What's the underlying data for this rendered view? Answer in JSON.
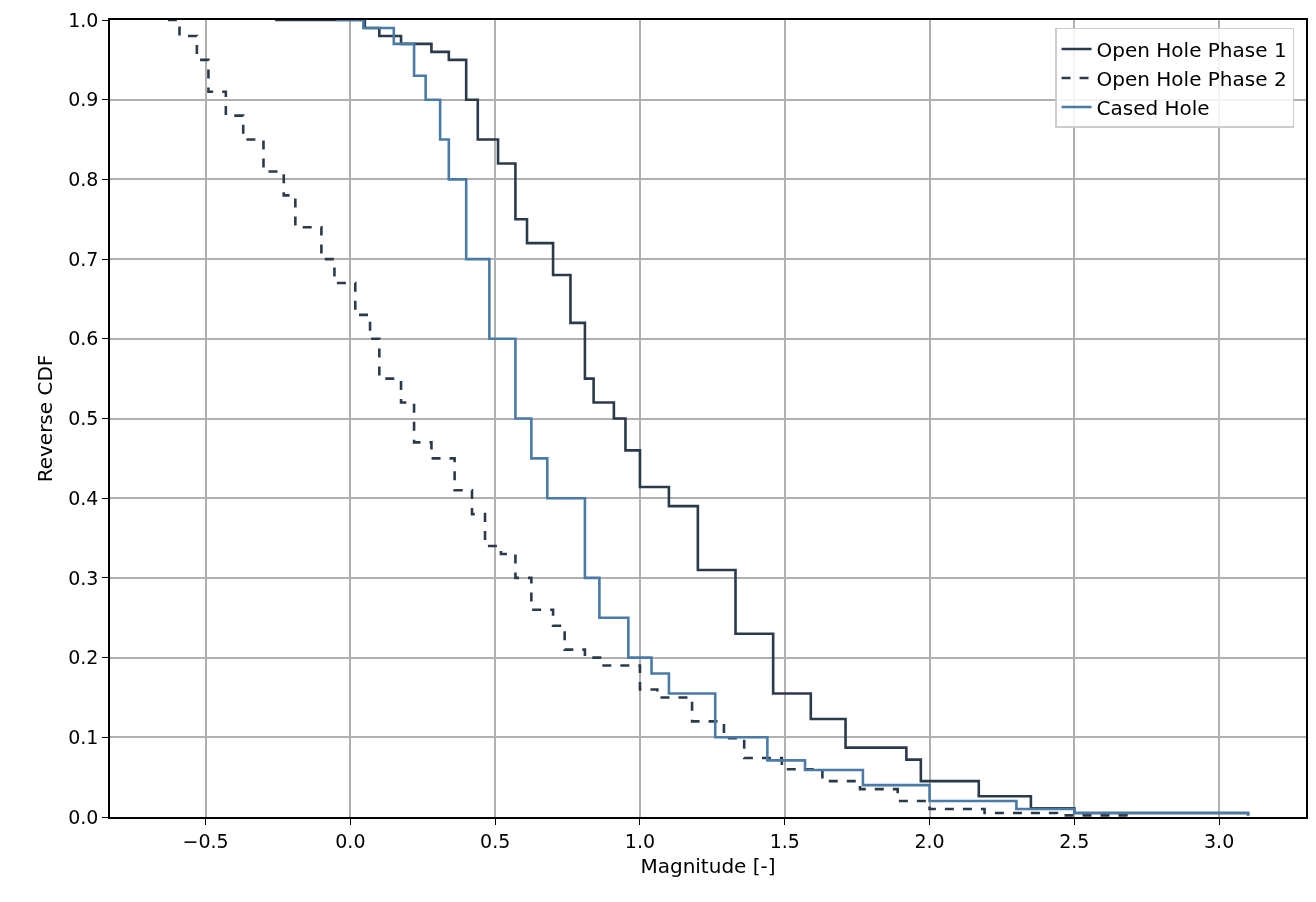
{
  "chart_data": {
    "type": "step",
    "xlabel": "Magnitude [-]",
    "ylabel": "Reverse CDF",
    "xlim": [
      -0.83,
      3.3
    ],
    "ylim": [
      0,
      1
    ],
    "xticks": [
      {
        "value": -0.5,
        "label": "−0.5"
      },
      {
        "value": 0,
        "label": "0.0"
      },
      {
        "value": 0.5,
        "label": "0.5"
      },
      {
        "value": 1,
        "label": "1.0"
      },
      {
        "value": 1.5,
        "label": "1.5"
      },
      {
        "value": 2,
        "label": "2.0"
      },
      {
        "value": 2.5,
        "label": "2.5"
      },
      {
        "value": 3,
        "label": "3.0"
      }
    ],
    "yticks": [
      {
        "value": 0,
        "label": "0.0"
      },
      0.1,
      0.2,
      0.3,
      0.4,
      0.5,
      0.6,
      0.7,
      0.8,
      0.9,
      {
        "value": 1,
        "label": "1.0"
      }
    ],
    "grid": true,
    "legend": "top right",
    "marker": "none",
    "series": [
      {
        "name": "Open Hole Phase 1",
        "color": "#2b3a4a",
        "line_style": "solid",
        "x": [
          -0.26,
          0.05,
          0.1,
          0.175,
          0.28,
          0.34,
          0.4,
          0.44,
          0.51,
          0.57,
          0.61,
          0.7,
          0.76,
          0.81,
          0.84,
          0.91,
          0.95,
          1.0,
          1.1,
          1.2,
          1.33,
          1.46,
          1.59,
          1.71,
          1.92,
          1.97,
          2.17,
          2.35,
          2.5,
          3.1
        ],
        "values": [
          1.0,
          0.99,
          0.98,
          0.97,
          0.96,
          0.95,
          0.9,
          0.85,
          0.82,
          0.75,
          0.72,
          0.68,
          0.62,
          0.55,
          0.52,
          0.5,
          0.46,
          0.414,
          0.39,
          0.31,
          0.23,
          0.155,
          0.123,
          0.087,
          0.072,
          0.045,
          0.026,
          0.011,
          0.005,
          0.002
        ]
      },
      {
        "name": "Open Hole Phase 2",
        "color": "#2b3a4a",
        "line_style": "dashed",
        "x": [
          -0.63,
          -0.59,
          -0.53,
          -0.49,
          -0.43,
          -0.37,
          -0.3,
          -0.23,
          -0.19,
          -0.1,
          -0.055,
          0.017,
          0.068,
          0.1,
          0.175,
          0.22,
          0.28,
          0.36,
          0.42,
          0.465,
          0.52,
          0.57,
          0.625,
          0.7,
          0.74,
          0.81,
          0.87,
          1.0,
          1.06,
          1.18,
          1.29,
          1.36,
          1.49,
          1.63,
          1.76,
          1.89,
          2.0,
          2.19,
          2.44,
          2.68
        ],
        "values": [
          1.0,
          0.98,
          0.95,
          0.91,
          0.88,
          0.85,
          0.81,
          0.78,
          0.74,
          0.7,
          0.67,
          0.63,
          0.6,
          0.55,
          0.52,
          0.47,
          0.45,
          0.41,
          0.38,
          0.34,
          0.33,
          0.3,
          0.26,
          0.24,
          0.21,
          0.2,
          0.19,
          0.16,
          0.15,
          0.12,
          0.099,
          0.074,
          0.06,
          0.045,
          0.035,
          0.02,
          0.01,
          0.005,
          0.002,
          0.0
        ]
      },
      {
        "name": "Cased Hole",
        "color": "#4a7ba6",
        "line_style": "solid",
        "x": [
          -0.05,
          0.045,
          0.15,
          0.22,
          0.26,
          0.31,
          0.34,
          0.4,
          0.48,
          0.57,
          0.625,
          0.68,
          0.81,
          0.86,
          0.96,
          1.04,
          1.1,
          1.26,
          1.44,
          1.57,
          1.77,
          2.0,
          2.3,
          2.5,
          3.1
        ],
        "values": [
          1.0,
          0.99,
          0.97,
          0.93,
          0.9,
          0.85,
          0.8,
          0.7,
          0.6,
          0.5,
          0.45,
          0.4,
          0.3,
          0.25,
          0.2,
          0.18,
          0.155,
          0.1,
          0.071,
          0.059,
          0.04,
          0.02,
          0.01,
          0.005,
          0.002
        ]
      }
    ]
  }
}
